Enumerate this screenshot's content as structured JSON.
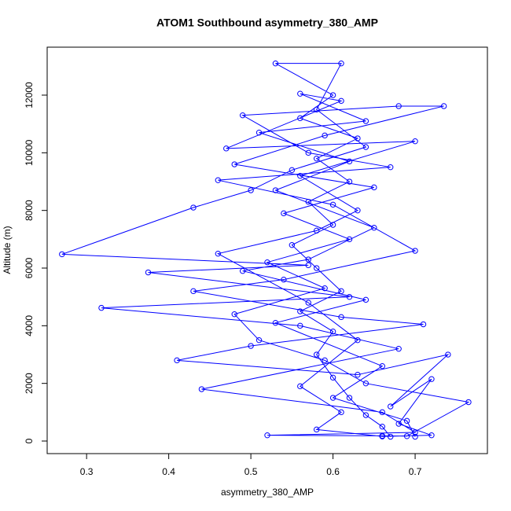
{
  "chart_data": {
    "type": "line",
    "title": "ATOM1 Southbound asymmetry_380_AMP",
    "x_label": "asymmetry_380_AMP",
    "y_label": "Altitude (m)",
    "color": "#0000ff",
    "xlim": [
      0.252,
      0.788
    ],
    "ylim": [
      -436,
      13664
    ],
    "xticks": [
      0.3,
      0.4,
      0.5,
      0.6,
      0.7
    ],
    "yticks": [
      0,
      2000,
      4000,
      6000,
      8000,
      10000,
      12000
    ],
    "x": [
      0.67,
      0.66,
      0.64,
      0.62,
      0.6,
      0.58,
      0.6,
      0.56,
      0.61,
      0.58,
      0.55,
      0.6,
      0.57,
      0.62,
      0.58,
      0.63,
      0.56,
      0.6,
      0.53,
      0.61,
      0.58,
      0.64,
      0.55,
      0.5,
      0.43,
      0.27,
      0.57,
      0.375,
      0.62,
      0.318,
      0.56,
      0.68,
      0.44,
      0.66,
      0.7,
      0.52,
      0.66,
      0.69,
      0.765,
      0.64,
      0.59,
      0.51,
      0.48,
      0.59,
      0.52,
      0.62,
      0.54,
      0.65,
      0.48,
      0.59,
      0.735,
      0.68,
      0.49,
      0.57,
      0.67,
      0.46,
      0.6,
      0.7,
      0.54,
      0.43,
      0.61,
      0.71,
      0.5,
      0.41,
      0.63,
      0.74,
      0.67,
      0.72,
      0.68,
      0.72,
      0.66,
      0.58,
      0.61,
      0.56,
      0.63,
      0.57,
      0.46,
      0.58,
      0.63,
      0.56,
      0.7,
      0.47,
      0.61,
      0.56,
      0.64,
      0.51,
      0.62,
      0.53,
      0.65,
      0.57,
      0.49,
      0.64,
      0.53,
      0.66,
      0.6,
      0.69,
      0.7
    ],
    "values": [
      150,
      500,
      900,
      1500,
      2200,
      3000,
      3800,
      4500,
      5200,
      6000,
      6800,
      7500,
      8300,
      9000,
      9800,
      10500,
      11200,
      12000,
      13100,
      13100,
      11500,
      10200,
      9400,
      8700,
      8100,
      6480,
      6100,
      5850,
      5000,
      4620,
      4000,
      3200,
      1800,
      1000,
      300,
      200,
      180,
      170,
      1350,
      2000,
      2800,
      3500,
      4400,
      5300,
      6200,
      7000,
      7900,
      8800,
      9600,
      10600,
      11620,
      11620,
      11300,
      10000,
      9500,
      9050,
      8200,
      6600,
      5600,
      5200,
      4300,
      4050,
      3300,
      2800,
      2300,
      3000,
      1200,
      2150,
      600,
      200,
      160,
      400,
      1000,
      1900,
      3500,
      4800,
      6500,
      7300,
      8000,
      9200,
      10400,
      10150,
      11800,
      12050,
      11100,
      10700,
      9700,
      8700,
      7400,
      6300,
      5900,
      4900,
      4100,
      2600,
      1500,
      700,
      150
    ]
  }
}
